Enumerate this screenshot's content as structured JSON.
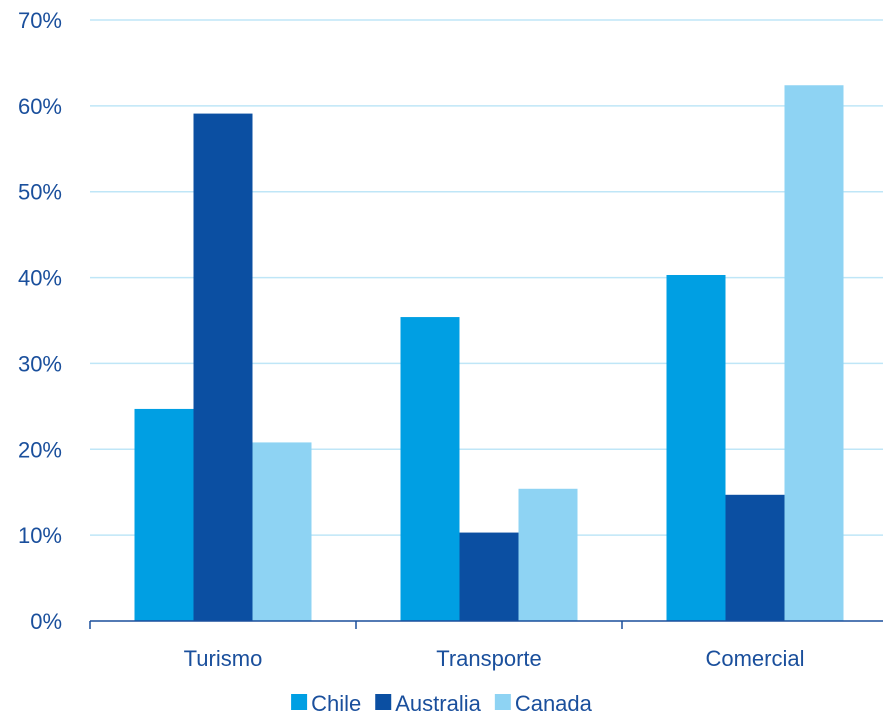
{
  "chart_data": {
    "type": "bar",
    "categories": [
      "Turismo",
      "Transporte",
      "Comercial"
    ],
    "series": [
      {
        "name": "Chile",
        "values": [
          24.7,
          35.4,
          40.3
        ],
        "color": "#009fe3"
      },
      {
        "name": "Australia",
        "values": [
          59.1,
          10.3,
          14.7
        ],
        "color": "#0b4fa2"
      },
      {
        "name": "Canada",
        "values": [
          20.8,
          15.4,
          62.4
        ],
        "color": "#8ed3f3"
      }
    ],
    "y_ticks": [
      "0%",
      "10%",
      "20%",
      "30%",
      "40%",
      "50%",
      "60%",
      "70%"
    ],
    "ylim": [
      0,
      70
    ],
    "grid": true,
    "gridline_color": "#bfe6f7",
    "axis_color": "#1a4f9c",
    "legend_position": "bottom",
    "title": "",
    "xlabel": "",
    "ylabel": ""
  }
}
